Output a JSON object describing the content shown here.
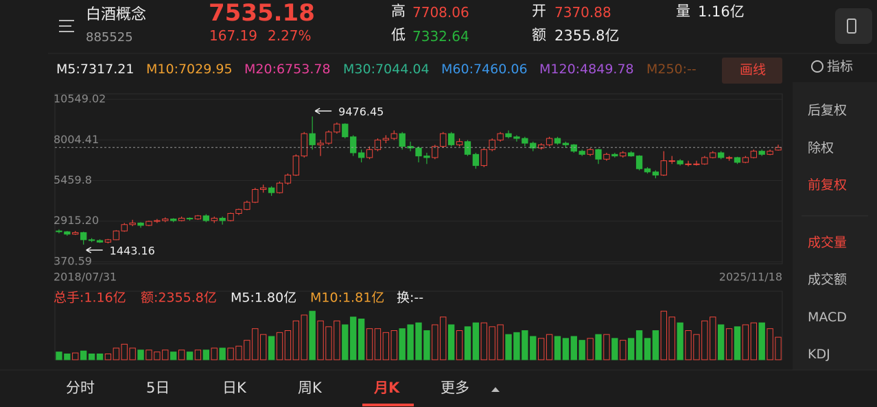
{
  "header": {
    "name": "白酒概念",
    "code": "885525",
    "price": "7535.18",
    "change": "167.19",
    "change_pct": "2.27%",
    "high_label": "高",
    "high": "7708.06",
    "low_label": "低",
    "low": "7332.64",
    "open_label": "开",
    "open": "7370.88",
    "amount_label": "额",
    "amount": "2355.8亿",
    "volume_label": "量",
    "volume": "1.16亿"
  },
  "ma_legend": [
    {
      "text": "M5:7317.21",
      "color": "#f0f0f0"
    },
    {
      "text": "M10:7029.95",
      "color": "#f0a030"
    },
    {
      "text": "M20:6753.78",
      "color": "#e8409a"
    },
    {
      "text": "M30:7044.04",
      "color": "#2fb38d"
    },
    {
      "text": "M60:7460.06",
      "color": "#3a95e8"
    },
    {
      "text": "M120:4849.78",
      "color": "#a455d8"
    },
    {
      "text": "M250:--",
      "color": "#8a4a20"
    }
  ],
  "draw_button": "画线",
  "sidebar": {
    "indicator": "指标",
    "items": [
      {
        "text": "后复权",
        "color": "#bdbdbd"
      },
      {
        "text": "除权",
        "color": "#bdbdbd"
      },
      {
        "text": "前复权",
        "color": "#f0463c"
      },
      {
        "text": "成交量",
        "color": "#f0463c"
      },
      {
        "text": "成交额",
        "color": "#bdbdbd"
      },
      {
        "text": "MACD",
        "color": "#bdbdbd"
      },
      {
        "text": "KDJ",
        "color": "#bdbdbd"
      }
    ]
  },
  "chart_data": [
    {
      "type": "candlestick",
      "up_color": "#f0463c",
      "down_color": "#28b43c",
      "categories": [
        "2018/07/31",
        null,
        null,
        null,
        null,
        null,
        null,
        null,
        null,
        null,
        null,
        null,
        null,
        null,
        null,
        null,
        null,
        null,
        null,
        null,
        null,
        null,
        null,
        null,
        null,
        null,
        null,
        null,
        null,
        null,
        null,
        null,
        null,
        null,
        null,
        null,
        null,
        null,
        null,
        null,
        null,
        null,
        null,
        null,
        null,
        null,
        null,
        null,
        null,
        null,
        null,
        null,
        null,
        null,
        null,
        null,
        null,
        null,
        null,
        null,
        null,
        null,
        null,
        null,
        null,
        null,
        null,
        null,
        null,
        null,
        null,
        null,
        null,
        null,
        null,
        null,
        null,
        null,
        null,
        null,
        null,
        null,
        null,
        null,
        null,
        null,
        null,
        null,
        "2025/11/18"
      ],
      "open": [
        2300,
        2250,
        2100,
        2200,
        1750,
        1700,
        1600,
        1750,
        2300,
        2700,
        2800,
        2650,
        2900,
        2950,
        3050,
        2950,
        3100,
        3050,
        3250,
        2950,
        3100,
        2950,
        3400,
        3650,
        4100,
        4900,
        5000,
        4700,
        5300,
        5800,
        7000,
        8400,
        7700,
        7800,
        8500,
        9000,
        8200,
        7200,
        6900,
        7400,
        8000,
        8100,
        8400,
        7600,
        7500,
        7000,
        6900,
        7600,
        8400,
        7700,
        7900,
        7100,
        6400,
        7400,
        8000,
        8400,
        8200,
        8100,
        7800,
        7500,
        7700,
        8100,
        7800,
        7700,
        7300,
        7100,
        7400,
        6800,
        7100,
        7000,
        7200,
        7000,
        6200,
        6000,
        5800,
        6700,
        6700,
        6500,
        6500,
        6500,
        6900,
        7200,
        6900,
        6900,
        6600,
        6900,
        7300,
        7100,
        7370.88
      ],
      "high": [
        2400,
        2300,
        2300,
        2250,
        1850,
        1780,
        1800,
        2350,
        2800,
        3000,
        2850,
        2950,
        3050,
        3150,
        3100,
        3200,
        3150,
        3300,
        3350,
        3200,
        3200,
        3450,
        3700,
        4200,
        5000,
        5200,
        5100,
        5400,
        5900,
        7100,
        8500,
        9476.45,
        8000,
        8600,
        9100,
        9050,
        8300,
        7400,
        7600,
        8100,
        8300,
        8600,
        8500,
        7900,
        7600,
        7200,
        7700,
        8500,
        8500,
        8100,
        8000,
        7200,
        7500,
        8100,
        8500,
        8600,
        8300,
        8200,
        7900,
        7800,
        8200,
        8200,
        7900,
        7750,
        7400,
        7500,
        7450,
        7200,
        7200,
        7300,
        7300,
        7050,
        6300,
        6100,
        7300,
        7000,
        6800,
        6700,
        6700,
        7000,
        7300,
        7300,
        7000,
        6950,
        7000,
        7400,
        7400,
        7400,
        7708.06
      ],
      "low": [
        2150,
        2000,
        2050,
        1443.16,
        1600,
        1550,
        1520,
        1720,
        2250,
        2600,
        2500,
        2600,
        2800,
        2850,
        2850,
        2900,
        2950,
        3000,
        2850,
        2800,
        2700,
        2900,
        3300,
        3600,
        4050,
        4700,
        4500,
        4650,
        5200,
        5750,
        6900,
        7400,
        7000,
        7700,
        8400,
        8100,
        7000,
        6600,
        6800,
        7300,
        7800,
        8000,
        7400,
        7300,
        6600,
        6500,
        6800,
        7500,
        7600,
        7600,
        7000,
        6200,
        6300,
        7300,
        7900,
        8100,
        7900,
        7600,
        7300,
        7400,
        7600,
        7700,
        7500,
        7200,
        7000,
        7000,
        6500,
        6700,
        6900,
        6900,
        6950,
        6100,
        5900,
        5600,
        5750,
        6500,
        6400,
        6350,
        6400,
        6450,
        6850,
        6800,
        6700,
        6500,
        6550,
        6850,
        7000,
        7050,
        7332.64
      ],
      "close": [
        2250,
        2100,
        2200,
        1750,
        1700,
        1600,
        1750,
        2300,
        2700,
        2800,
        2650,
        2900,
        2950,
        3050,
        2950,
        3100,
        3050,
        3250,
        2950,
        3100,
        2950,
        3400,
        3650,
        4100,
        4900,
        5000,
        4700,
        5300,
        5800,
        7000,
        8400,
        7700,
        7800,
        8500,
        9000,
        8200,
        7200,
        6900,
        7400,
        8000,
        8100,
        8400,
        7600,
        7500,
        7000,
        6900,
        7600,
        8400,
        7700,
        7900,
        7100,
        6400,
        7400,
        8000,
        8400,
        8200,
        8100,
        7800,
        7500,
        7700,
        8100,
        7800,
        7700,
        7300,
        7100,
        7400,
        6800,
        7100,
        7000,
        7200,
        7000,
        6200,
        6000,
        5800,
        6700,
        6700,
        6500,
        6500,
        6500,
        6900,
        7200,
        6900,
        6900,
        6600,
        6900,
        7300,
        7100,
        7300,
        7535.18
      ],
      "ylim": [
        370.59,
        10549.02
      ],
      "yticks": [
        10549.02,
        8004.41,
        5459.8,
        {
          "value": 2915.2,
          "label": "2915.20"
        },
        370.59
      ],
      "annotations": [
        {
          "text": "9476.45"
        },
        {
          "text": "1443.16"
        }
      ]
    },
    {
      "type": "bar",
      "legend": [
        {
          "text": "总手:1.16亿",
          "color": "#f0463c"
        },
        {
          "text": "额:2355.8亿",
          "color": "#f0463c"
        },
        {
          "text": "M5:1.80亿",
          "color": "#f0f0f0"
        },
        {
          "text": "M10:1.81亿",
          "color": "#f0a030"
        },
        {
          "text": "换:--",
          "color": "#f0f0f0"
        }
      ],
      "values": [
        0.4,
        0.3,
        0.35,
        0.45,
        0.3,
        0.3,
        0.3,
        0.6,
        0.8,
        0.6,
        0.5,
        0.5,
        0.4,
        0.5,
        0.4,
        0.5,
        0.4,
        0.5,
        0.5,
        0.6,
        0.6,
        0.6,
        0.7,
        1.0,
        1.6,
        1.3,
        1.2,
        1.4,
        1.5,
        2.0,
        2.3,
        2.5,
        2.0,
        1.7,
        2.0,
        1.8,
        2.2,
        2.1,
        1.6,
        1.6,
        1.4,
        1.5,
        1.6,
        1.8,
        1.9,
        1.5,
        1.8,
        2.2,
        1.8,
        1.5,
        1.7,
        1.9,
        1.9,
        1.7,
        1.8,
        1.3,
        1.4,
        1.5,
        1.2,
        1.1,
        1.3,
        1.2,
        1.1,
        1.2,
        1.0,
        1.1,
        1.3,
        1.3,
        1.1,
        1.0,
        1.1,
        1.5,
        1.1,
        1.5,
        2.5,
        2.2,
        1.9,
        1.5,
        1.3,
        2.0,
        2.2,
        1.8,
        1.6,
        1.7,
        1.8,
        1.9,
        1.9,
        1.6,
        1.16
      ],
      "ylim": [
        0,
        3
      ]
    }
  ],
  "tabs": {
    "items": [
      "分时",
      "5日",
      "日K",
      "周K",
      "月K",
      "更多"
    ],
    "active": 4
  }
}
